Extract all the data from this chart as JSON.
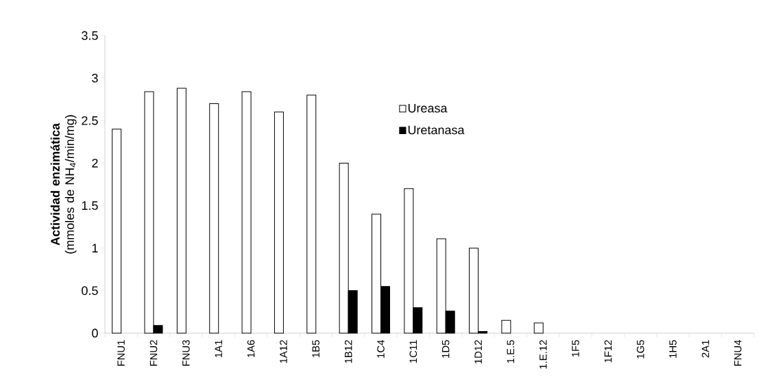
{
  "chart_data": {
    "type": "bar",
    "ylabel": "**Actividad enzimática** (mmoles de NH$_{4}$/min/mg)",
    "categories": [
      "FNU1",
      "FNU2",
      "FNU3",
      "1A1",
      "1A6",
      "1A12",
      "1B5",
      "1B12",
      "1C4",
      "1C11",
      "1D5",
      "1D12",
      "1.E.5",
      "1.E.12",
      "1F5",
      "1F12",
      "1G5",
      "1H5",
      "2A1",
      "FNU4"
    ],
    "series": [
      {
        "name": "Ureasa",
        "color": "#ffffff",
        "values": [
          2.4,
          2.84,
          2.88,
          2.7,
          2.84,
          2.6,
          2.8,
          2.0,
          1.4,
          1.7,
          1.11,
          1.0,
          0.15,
          0.12,
          0,
          0,
          0,
          0,
          0,
          0
        ]
      },
      {
        "name": "Uretanasa",
        "color": "#000000",
        "values": [
          0,
          0.09,
          0,
          0,
          0,
          0,
          0,
          0.5,
          0.55,
          0.3,
          0.26,
          0.02,
          0,
          0,
          0,
          0,
          0,
          0,
          0,
          0
        ]
      }
    ],
    "ylim": [
      0,
      3.5
    ],
    "yticks": [
      0,
      0.5,
      1,
      1.5,
      2,
      2.5,
      3,
      3.5
    ],
    "grid": false,
    "legend": "top"
  }
}
